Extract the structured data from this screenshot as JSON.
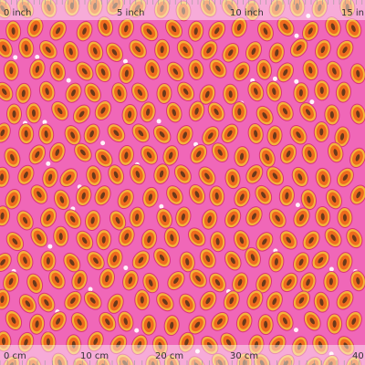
{
  "top_ruler": {
    "labels": [
      "0 inch",
      "5 inch",
      "10 inch",
      "15 in"
    ]
  },
  "bottom_ruler": {
    "labels": [
      "0 cm",
      "10 cm",
      "20 cm",
      "30 cm",
      "40"
    ]
  }
}
